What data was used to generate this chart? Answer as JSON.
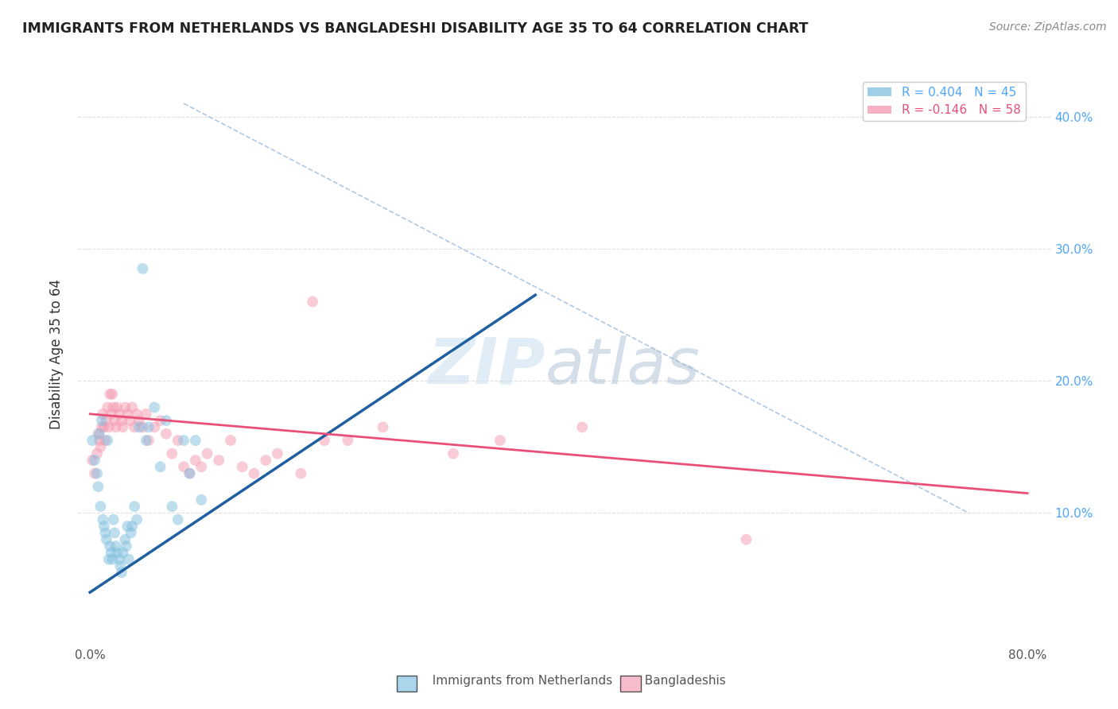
{
  "title": "IMMIGRANTS FROM NETHERLANDS VS BANGLADESHI DISABILITY AGE 35 TO 64 CORRELATION CHART",
  "source": "Source: ZipAtlas.com",
  "ylabel": "Disability Age 35 to 64",
  "xlabel_ticks": [
    "0.0%",
    "",
    "",
    "",
    "",
    "",
    "",
    "",
    "80.0%"
  ],
  "xlabel_vals": [
    0.0,
    0.1,
    0.2,
    0.3,
    0.4,
    0.5,
    0.6,
    0.7,
    0.8
  ],
  "ylabel_ticks_right": [
    "",
    "10.0%",
    "20.0%",
    "30.0%",
    "40.0%"
  ],
  "ylabel_vals": [
    0.0,
    0.1,
    0.2,
    0.3,
    0.4
  ],
  "xlim": [
    -0.01,
    0.82
  ],
  "ylim": [
    0.0,
    0.44
  ],
  "legend_entry1": "R = 0.404   N = 45",
  "legend_entry2": "R = -0.146   N = 58",
  "legend_label1": "Immigrants from Netherlands",
  "legend_label2": "Bangladeshis",
  "watermark_zip": "ZIP",
  "watermark_atlas": "atlas",
  "blue_line": {
    "x0": 0.0,
    "y0": 0.04,
    "x1": 0.38,
    "y1": 0.265
  },
  "pink_line": {
    "x0": 0.0,
    "y0": 0.175,
    "x1": 0.8,
    "y1": 0.115
  },
  "diag_line": {
    "x0": 0.08,
    "y0": 0.41,
    "x1": 0.75,
    "y1": 0.1
  },
  "blue_scatter": [
    [
      0.002,
      0.155
    ],
    [
      0.004,
      0.14
    ],
    [
      0.006,
      0.13
    ],
    [
      0.007,
      0.12
    ],
    [
      0.008,
      0.16
    ],
    [
      0.009,
      0.105
    ],
    [
      0.01,
      0.17
    ],
    [
      0.011,
      0.095
    ],
    [
      0.012,
      0.09
    ],
    [
      0.013,
      0.085
    ],
    [
      0.014,
      0.08
    ],
    [
      0.015,
      0.155
    ],
    [
      0.016,
      0.065
    ],
    [
      0.017,
      0.075
    ],
    [
      0.018,
      0.07
    ],
    [
      0.019,
      0.065
    ],
    [
      0.02,
      0.095
    ],
    [
      0.021,
      0.085
    ],
    [
      0.022,
      0.075
    ],
    [
      0.023,
      0.07
    ],
    [
      0.025,
      0.065
    ],
    [
      0.026,
      0.06
    ],
    [
      0.027,
      0.055
    ],
    [
      0.028,
      0.07
    ],
    [
      0.03,
      0.08
    ],
    [
      0.031,
      0.075
    ],
    [
      0.032,
      0.09
    ],
    [
      0.033,
      0.065
    ],
    [
      0.035,
      0.085
    ],
    [
      0.036,
      0.09
    ],
    [
      0.038,
      0.105
    ],
    [
      0.04,
      0.095
    ],
    [
      0.042,
      0.165
    ],
    [
      0.045,
      0.285
    ],
    [
      0.048,
      0.155
    ],
    [
      0.05,
      0.165
    ],
    [
      0.055,
      0.18
    ],
    [
      0.06,
      0.135
    ],
    [
      0.065,
      0.17
    ],
    [
      0.07,
      0.105
    ],
    [
      0.075,
      0.095
    ],
    [
      0.08,
      0.155
    ],
    [
      0.085,
      0.13
    ],
    [
      0.09,
      0.155
    ],
    [
      0.095,
      0.11
    ]
  ],
  "pink_scatter": [
    [
      0.002,
      0.14
    ],
    [
      0.004,
      0.13
    ],
    [
      0.006,
      0.145
    ],
    [
      0.007,
      0.16
    ],
    [
      0.008,
      0.155
    ],
    [
      0.009,
      0.15
    ],
    [
      0.01,
      0.165
    ],
    [
      0.011,
      0.175
    ],
    [
      0.012,
      0.165
    ],
    [
      0.013,
      0.155
    ],
    [
      0.014,
      0.17
    ],
    [
      0.015,
      0.18
    ],
    [
      0.016,
      0.165
    ],
    [
      0.017,
      0.19
    ],
    [
      0.018,
      0.175
    ],
    [
      0.019,
      0.19
    ],
    [
      0.02,
      0.18
    ],
    [
      0.021,
      0.17
    ],
    [
      0.022,
      0.165
    ],
    [
      0.023,
      0.18
    ],
    [
      0.025,
      0.175
    ],
    [
      0.027,
      0.17
    ],
    [
      0.028,
      0.165
    ],
    [
      0.03,
      0.18
    ],
    [
      0.032,
      0.175
    ],
    [
      0.034,
      0.17
    ],
    [
      0.036,
      0.18
    ],
    [
      0.038,
      0.165
    ],
    [
      0.04,
      0.175
    ],
    [
      0.042,
      0.17
    ],
    [
      0.045,
      0.165
    ],
    [
      0.048,
      0.175
    ],
    [
      0.05,
      0.155
    ],
    [
      0.055,
      0.165
    ],
    [
      0.06,
      0.17
    ],
    [
      0.065,
      0.16
    ],
    [
      0.07,
      0.145
    ],
    [
      0.075,
      0.155
    ],
    [
      0.08,
      0.135
    ],
    [
      0.085,
      0.13
    ],
    [
      0.09,
      0.14
    ],
    [
      0.095,
      0.135
    ],
    [
      0.1,
      0.145
    ],
    [
      0.11,
      0.14
    ],
    [
      0.12,
      0.155
    ],
    [
      0.13,
      0.135
    ],
    [
      0.14,
      0.13
    ],
    [
      0.15,
      0.14
    ],
    [
      0.16,
      0.145
    ],
    [
      0.18,
      0.13
    ],
    [
      0.19,
      0.26
    ],
    [
      0.2,
      0.155
    ],
    [
      0.22,
      0.155
    ],
    [
      0.25,
      0.165
    ],
    [
      0.31,
      0.145
    ],
    [
      0.35,
      0.155
    ],
    [
      0.42,
      0.165
    ],
    [
      0.56,
      0.08
    ]
  ],
  "scatter_alpha": 0.5,
  "scatter_size": 100,
  "blue_color": "#7fbfdf",
  "pink_color": "#f498b0",
  "blue_line_color": "#2060a0",
  "pink_line_color": "#e8507a",
  "diag_color": "#b0c8e0",
  "grid_color": "#e0e0e0",
  "title_color": "#222222",
  "source_color": "#888888"
}
